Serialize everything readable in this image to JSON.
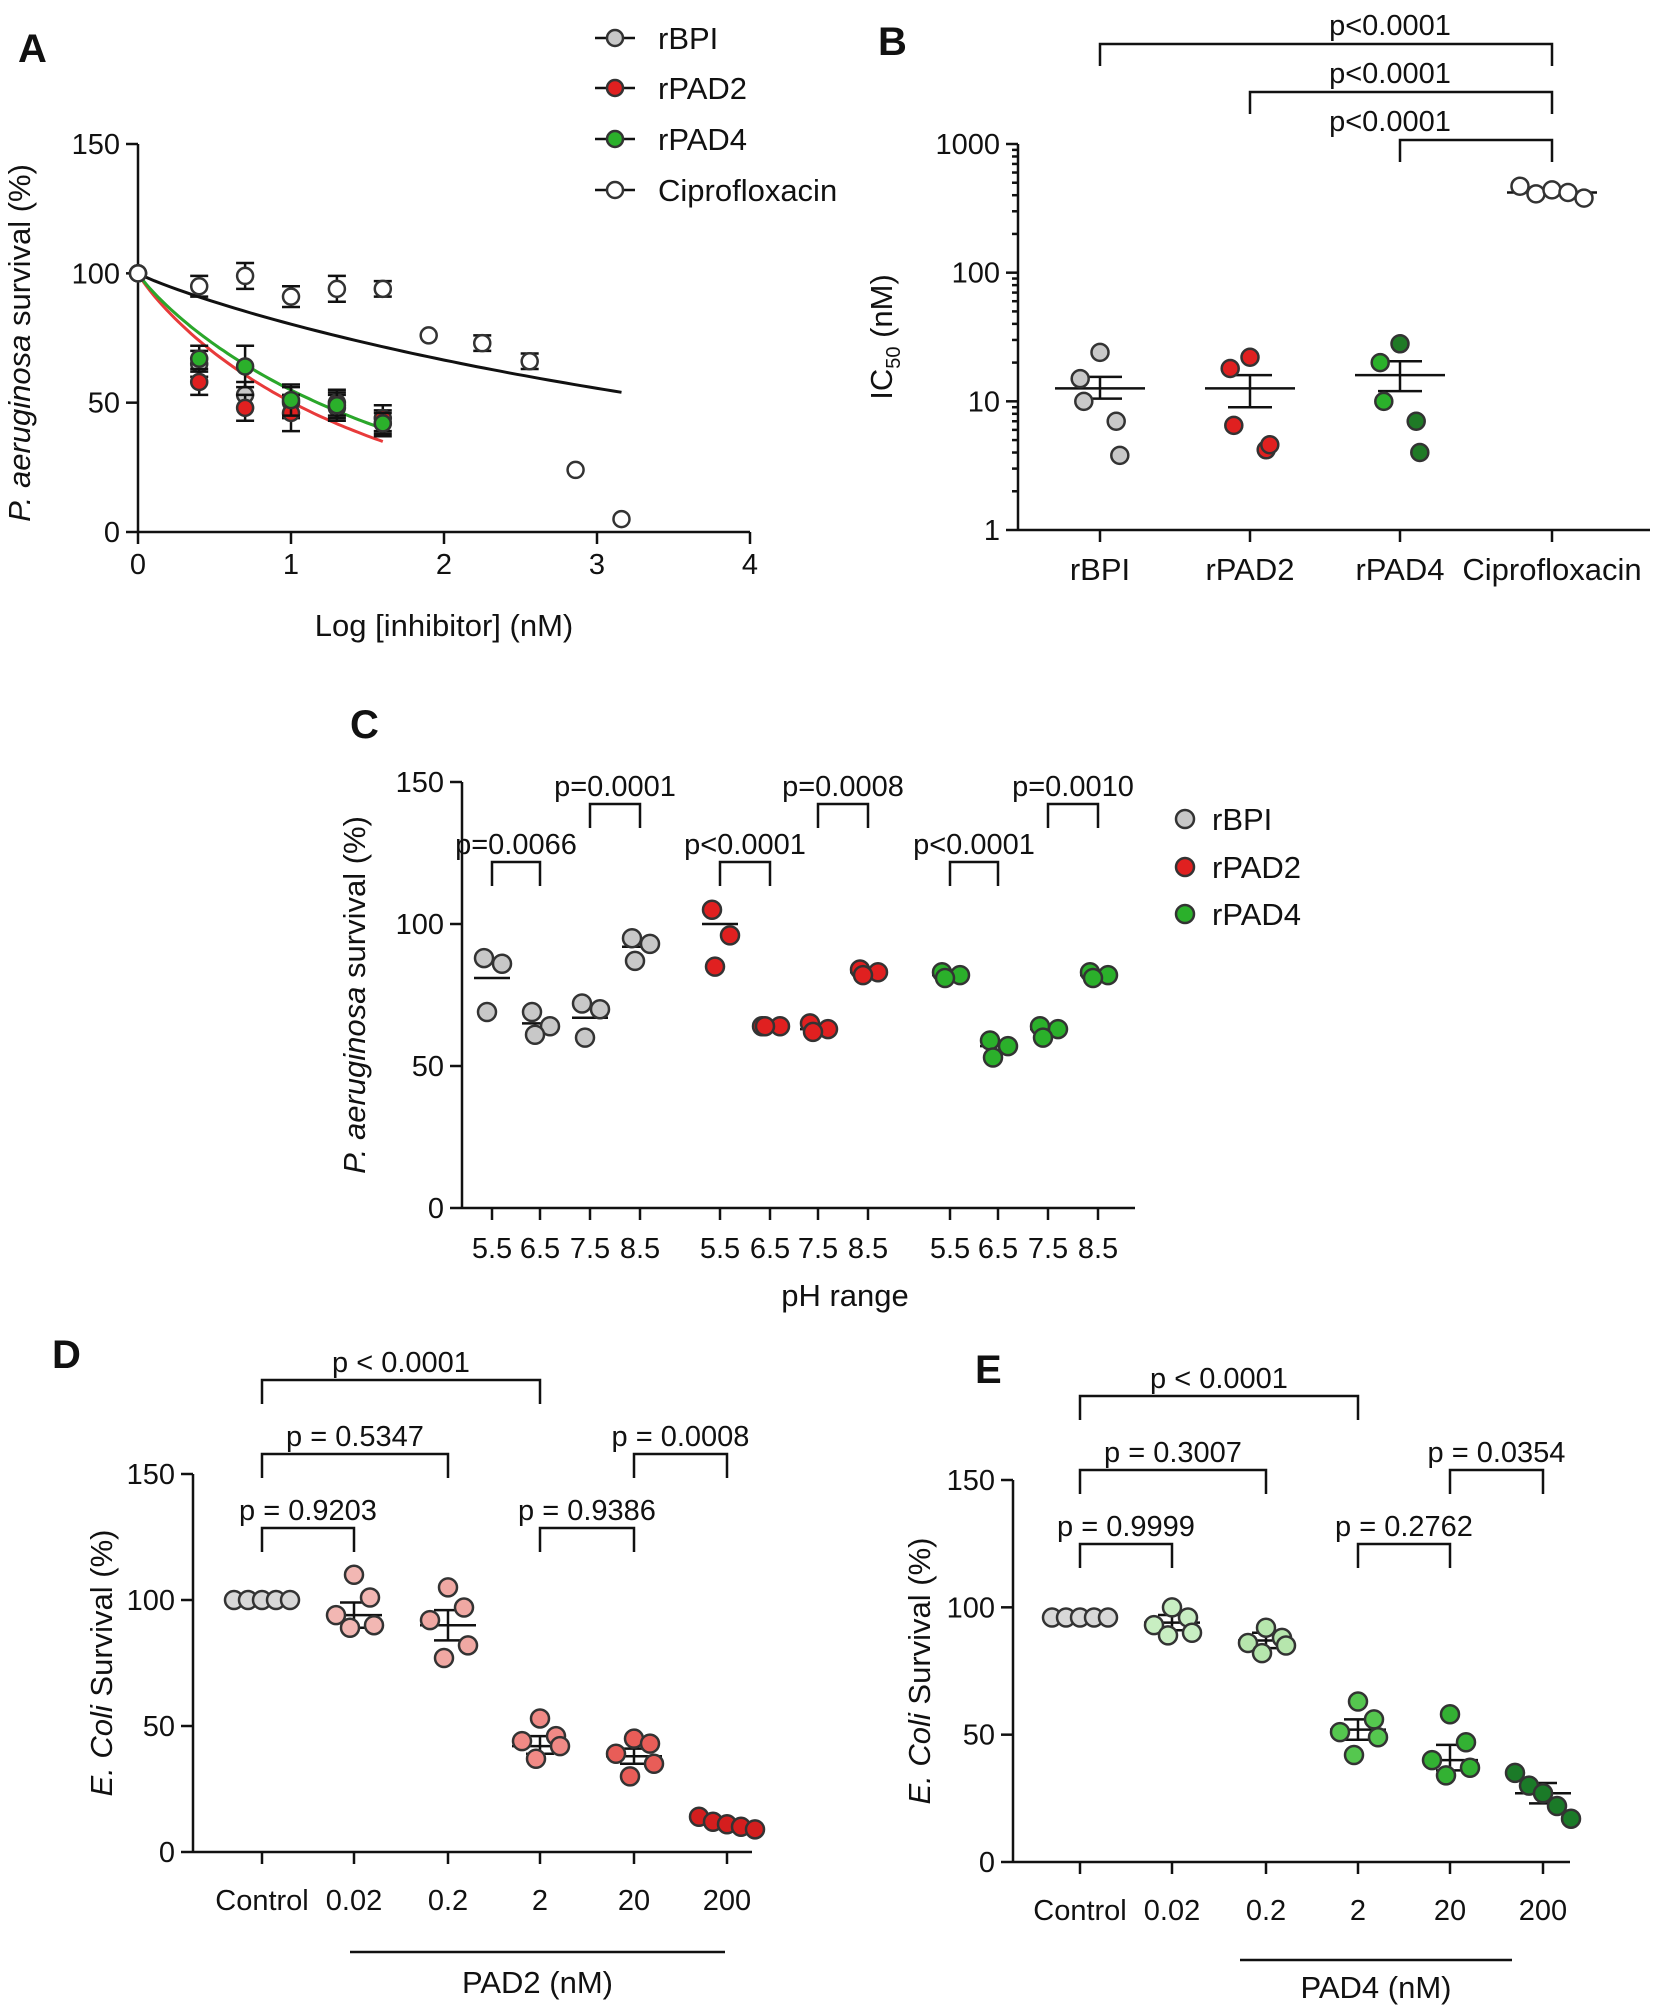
{
  "colors": {
    "rBPI": "#c8c8c8",
    "rPAD2": "#e02020",
    "rPAD4": "#2bb02b",
    "Ciprofloxacin": "#ffffff",
    "fit_rBPI": "#b0b0b0",
    "fit_rPAD2": "#e83a3a",
    "fit_rPAD4": "#2aa82a",
    "fit_cipro": "#111111",
    "D_shades": [
      "#d8d8d8",
      "#f2b7b3",
      "#f0a8a3",
      "#f08a86",
      "#e85d58",
      "#d41e1e"
    ],
    "E_shades": [
      "#d8d8d8",
      "#c8eec2",
      "#b6e6ad",
      "#55c74f",
      "#33b133",
      "#1b7a28"
    ]
  },
  "chart_data": [
    {
      "panel": "A",
      "type": "scatter",
      "ylabel_italic": "P. aeruginosa",
      "ylabel_rest": " survival (%)",
      "xlabel": "Log [inhibitor] (nM)",
      "xlim": [
        0,
        4
      ],
      "ylim": [
        0,
        150
      ],
      "xticks": [
        "0",
        "1",
        "2",
        "3",
        "4"
      ],
      "yticks": [
        "0",
        "50",
        "100",
        "150"
      ],
      "legend": [
        "rBPI",
        "rPAD2",
        "rPAD4",
        "Ciprofloxacin"
      ],
      "series": [
        {
          "name": "rBPI",
          "x": [
            0,
            0.4,
            0.7,
            1.0,
            1.3,
            1.6
          ],
          "y": [
            100,
            65,
            53,
            50,
            48,
            42
          ],
          "err": [
            0,
            5,
            5,
            6,
            5,
            5
          ]
        },
        {
          "name": "rPAD2",
          "x": [
            0,
            0.4,
            0.7,
            1.0,
            1.3,
            1.6
          ],
          "y": [
            100,
            58,
            48,
            46,
            50,
            44
          ],
          "err": [
            0,
            5,
            5,
            7,
            5,
            5
          ]
        },
        {
          "name": "rPAD4",
          "x": [
            0,
            0.4,
            0.7,
            1.0,
            1.3,
            1.6
          ],
          "y": [
            100,
            67,
            64,
            51,
            49,
            42
          ],
          "err": [
            0,
            5,
            8,
            6,
            5,
            4
          ]
        },
        {
          "name": "Ciprofloxacin",
          "x": [
            0,
            0.4,
            0.7,
            1.0,
            1.3,
            1.6,
            1.9,
            2.25,
            2.56,
            2.86,
            3.16
          ],
          "y": [
            100,
            95,
            99,
            91,
            94,
            94,
            76,
            73,
            66,
            24,
            5
          ],
          "err": [
            0,
            4,
            5,
            4,
            5,
            3,
            0,
            3,
            3,
            0,
            0
          ]
        }
      ],
      "fits": [
        {
          "name": "rBPI",
          "x_end": 1.6,
          "y_end": 40
        },
        {
          "name": "rPAD2",
          "x_end": 1.6,
          "y_end": 35
        },
        {
          "name": "rPAD4",
          "x_end": 1.6,
          "y_end": 40
        },
        {
          "name": "Ciprofloxacin",
          "x_end": 3.16,
          "y_end": 54
        }
      ]
    },
    {
      "panel": "B",
      "type": "scatter",
      "ylabel": "IC50 (nM)",
      "ylabel_main": "IC",
      "ylabel_sub": "50",
      "ylabel_unit": " (nM)",
      "yscale": "log",
      "ylim": [
        1,
        1000
      ],
      "yticks": [
        "1",
        "10",
        "100",
        "1000"
      ],
      "categories": [
        "rBPI",
        "rPAD2",
        "rPAD4",
        "Ciprofloxacin"
      ],
      "points": [
        [
          24,
          15,
          10,
          7,
          3.8
        ],
        [
          22,
          18,
          6.5,
          4.2,
          4.6
        ],
        [
          28,
          20,
          10,
          7,
          4.0
        ],
        [
          470,
          410,
          440,
          420,
          380
        ]
      ],
      "means": [
        12.6,
        12.6,
        16,
        420
      ],
      "sems": [
        [
          10.5,
          15.5
        ],
        [
          9,
          16
        ],
        [
          12,
          20.5
        ],
        [
          405,
          432
        ]
      ],
      "comparisons": [
        {
          "from": 0,
          "to": 3,
          "text": "p<0.0001"
        },
        {
          "from": 1,
          "to": 3,
          "text": "p<0.0001"
        },
        {
          "from": 2,
          "to": 3,
          "text": "p<0.0001"
        }
      ]
    },
    {
      "panel": "C",
      "type": "scatter",
      "ylabel_italic": "P. aeruginosa",
      "ylabel_rest": " survival (%)",
      "xlabel": "pH range",
      "ylim": [
        0,
        150
      ],
      "yticks": [
        "0",
        "50",
        "100",
        "150"
      ],
      "legend": [
        "rBPI",
        "rPAD2",
        "rPAD4"
      ],
      "groups": [
        {
          "name": "rBPI",
          "ph": [
            "5.5",
            "6.5",
            "7.5",
            "8.5"
          ],
          "points": [
            [
              88,
              86,
              69
            ],
            [
              69,
              64,
              61
            ],
            [
              72,
              70,
              60
            ],
            [
              95,
              93,
              87
            ]
          ],
          "means": [
            81,
            65,
            67,
            92
          ],
          "comparisons": [
            {
              "from": 0,
              "to": 1,
              "text": "p=0.0066"
            },
            {
              "from": 2,
              "to": 3,
              "text": "p=0.0001"
            }
          ]
        },
        {
          "name": "rPAD2",
          "ph": [
            "5.5",
            "6.5",
            "7.5",
            "8.5"
          ],
          "points": [
            [
              105,
              96,
              85
            ],
            [
              64,
              64,
              64
            ],
            [
              65,
              63,
              62
            ],
            [
              84,
              83,
              82
            ]
          ],
          "means": [
            100,
            64,
            63,
            83
          ],
          "comparisons": [
            {
              "from": 0,
              "to": 1,
              "text": "p<0.0001"
            },
            {
              "from": 2,
              "to": 3,
              "text": "p=0.0008"
            }
          ]
        },
        {
          "name": "rPAD4",
          "ph": [
            "5.5",
            "6.5",
            "7.5",
            "8.5"
          ],
          "points": [
            [
              83,
              82,
              81
            ],
            [
              59,
              57,
              53
            ],
            [
              64,
              63,
              60
            ],
            [
              83,
              82,
              81
            ]
          ],
          "means": [
            82,
            57,
            63,
            82
          ],
          "comparisons": [
            {
              "from": 0,
              "to": 1,
              "text": "p<0.0001"
            },
            {
              "from": 2,
              "to": 3,
              "text": "p=0.0010"
            }
          ]
        }
      ]
    },
    {
      "panel": "D",
      "type": "scatter",
      "ylabel_italic": "E. Coli",
      "ylabel_rest": " Survival (%)",
      "xlabel": "PAD2 (nM)",
      "ylim": [
        0,
        150
      ],
      "yticks": [
        "0",
        "50",
        "100",
        "150"
      ],
      "categories": [
        "Control",
        "0.02",
        "0.2",
        "2",
        "20",
        "200"
      ],
      "points": [
        [
          100,
          100,
          100,
          100,
          100
        ],
        [
          110,
          101,
          94,
          90,
          89
        ],
        [
          105,
          97,
          92,
          82,
          77
        ],
        [
          53,
          46,
          44,
          42,
          37
        ],
        [
          45,
          43,
          39,
          35,
          30
        ],
        [
          14,
          12,
          11,
          10,
          9
        ]
      ],
      "means": [
        100,
        94,
        90,
        42,
        38,
        11
      ],
      "sems": [
        [
          100,
          100
        ],
        [
          89,
          99
        ],
        [
          84,
          96
        ],
        [
          39,
          46
        ],
        [
          35,
          41
        ],
        [
          10,
          12
        ]
      ],
      "comparisons": [
        {
          "from": 0,
          "to": 3,
          "text": "p < 0.0001"
        },
        {
          "from": 0,
          "to": 2,
          "text": "p = 0.5347"
        },
        {
          "from": 0,
          "to": 1,
          "text": "p = 0.9203"
        },
        {
          "from": 4,
          "to": 5,
          "text": "p = 0.0008"
        },
        {
          "from": 3,
          "to": 4,
          "text": "p = 0.9386"
        }
      ]
    },
    {
      "panel": "E",
      "type": "scatter",
      "ylabel_italic": "E. Coli",
      "ylabel_rest": " Survival (%)",
      "xlabel": "PAD4 (nM)",
      "ylim": [
        0,
        150
      ],
      "yticks": [
        "0",
        "50",
        "100",
        "150"
      ],
      "categories": [
        "Control",
        "0.02",
        "0.2",
        "2",
        "20",
        "200"
      ],
      "points": [
        [
          96,
          96,
          96,
          96,
          96
        ],
        [
          100,
          96,
          93,
          90,
          89
        ],
        [
          92,
          88,
          86,
          85,
          82
        ],
        [
          63,
          56,
          51,
          49,
          42
        ],
        [
          58,
          47,
          40,
          37,
          34
        ],
        [
          35,
          30,
          27,
          22,
          17
        ]
      ],
      "means": [
        96,
        94,
        87,
        52,
        40,
        27
      ],
      "sems": [
        [
          96,
          96
        ],
        [
          91,
          97
        ],
        [
          84,
          90
        ],
        [
          48,
          56
        ],
        [
          36,
          46
        ],
        [
          23,
          31
        ]
      ],
      "comparisons": [
        {
          "from": 0,
          "to": 3,
          "text": "p < 0.0001"
        },
        {
          "from": 0,
          "to": 2,
          "text": "p = 0.3007"
        },
        {
          "from": 0,
          "to": 1,
          "text": "p = 0.9999"
        },
        {
          "from": 4,
          "to": 5,
          "text": "p = 0.0354"
        },
        {
          "from": 3,
          "to": 4,
          "text": "p = 0.2762"
        }
      ]
    }
  ],
  "panel_labels": [
    "A",
    "B",
    "C",
    "D",
    "E"
  ]
}
